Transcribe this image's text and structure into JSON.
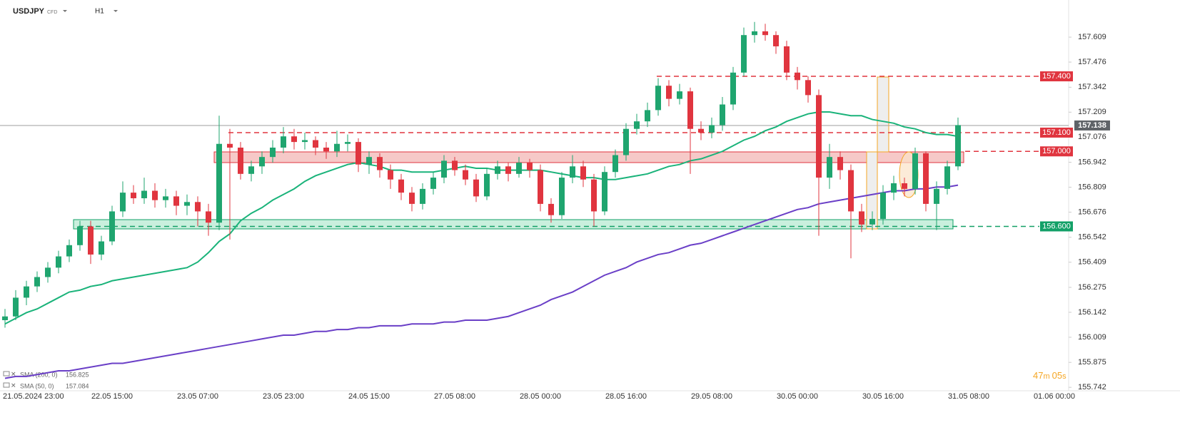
{
  "header": {
    "symbol": "USDJPY",
    "instrument": "CFD",
    "interval": "H1"
  },
  "timer": {
    "minutes": "47",
    "minutes_unit": "m",
    "seconds": "05",
    "seconds_unit": "s"
  },
  "chart_data": {
    "type": "candlestick",
    "up_color": "#1fa56f",
    "down_color": "#e0353f",
    "grid": false,
    "ylim": [
      155.735,
      157.807
    ],
    "yticks": [
      157.609,
      157.476,
      157.342,
      157.209,
      157.076,
      156.942,
      156.809,
      156.676,
      156.542,
      156.409,
      156.275,
      156.142,
      156.009,
      155.875,
      155.742
    ],
    "categories": [
      null,
      null,
      "21.05.2024 23:00",
      null,
      null,
      null,
      null,
      null,
      null,
      null,
      "22.05 15:00",
      null,
      null,
      null,
      null,
      null,
      null,
      null,
      "23.05 07:00",
      null,
      null,
      null,
      null,
      null,
      null,
      null,
      "23.05 23:00",
      null,
      null,
      null,
      null,
      null,
      null,
      null,
      "24.05 15:00",
      null,
      null,
      null,
      null,
      null,
      null,
      null,
      "27.05 08:00",
      null,
      null,
      null,
      null,
      null,
      null,
      null,
      "28.05 00:00",
      null,
      null,
      null,
      null,
      null,
      null,
      null,
      "28.05 16:00",
      null,
      null,
      null,
      null,
      null,
      null,
      null,
      "29.05 08:00",
      null,
      null,
      null,
      null,
      null,
      null,
      null,
      "30.05 00:00",
      null,
      null,
      null,
      null,
      null,
      null,
      null,
      "30.05 16:00",
      null,
      null,
      null,
      null,
      null,
      null,
      null,
      "31.05 08:00",
      null,
      null,
      null,
      null,
      null,
      null,
      null,
      "01.06 00:00"
    ],
    "open": [
      156.1,
      156.12,
      156.22,
      156.28,
      156.33,
      156.38,
      156.44,
      156.5,
      156.6,
      156.45,
      156.52,
      156.68,
      156.78,
      156.75,
      156.79,
      156.74,
      156.76,
      156.71,
      156.73,
      156.68,
      156.62,
      157.04,
      157.02,
      156.88,
      156.92,
      156.97,
      157.02,
      157.08,
      157.05,
      157.06,
      157.02,
      157.0,
      157.04,
      157.05,
      156.93,
      156.97,
      156.9,
      156.85,
      156.78,
      156.72,
      156.8,
      156.86,
      156.95,
      156.9,
      156.85,
      156.76,
      156.88,
      156.92,
      156.88,
      156.94,
      156.9,
      156.72,
      156.66,
      156.86,
      156.92,
      156.85,
      156.68,
      156.89,
      156.98,
      157.12,
      157.16,
      157.22,
      157.35,
      157.28,
      157.32,
      157.12,
      157.1,
      157.14,
      157.25,
      157.42,
      157.62,
      157.64,
      157.62,
      157.56,
      157.42,
      157.38,
      157.3,
      156.86,
      156.97,
      156.9,
      156.68,
      156.61,
      156.64,
      156.78,
      156.83,
      156.8,
      156.99,
      156.72,
      156.8,
      156.92,
      null,
      null,
      null,
      null,
      null,
      null,
      null,
      null,
      null
    ],
    "high": [
      156.16,
      156.26,
      156.31,
      156.36,
      156.41,
      156.47,
      156.53,
      156.63,
      156.63,
      156.55,
      156.71,
      156.84,
      156.82,
      156.86,
      156.83,
      156.8,
      156.79,
      156.77,
      156.76,
      156.72,
      157.19,
      157.12,
      157.05,
      156.95,
      157.0,
      157.06,
      157.13,
      157.12,
      157.1,
      157.08,
      157.05,
      157.11,
      157.09,
      157.07,
      157.0,
      156.99,
      156.93,
      156.88,
      156.81,
      156.83,
      156.89,
      156.98,
      156.97,
      156.93,
      156.88,
      156.91,
      156.95,
      156.94,
      156.97,
      156.96,
      156.93,
      156.75,
      156.89,
      156.98,
      156.95,
      156.88,
      156.92,
      157.01,
      157.15,
      157.2,
      157.26,
      157.39,
      157.38,
      157.36,
      157.34,
      157.16,
      157.18,
      157.29,
      157.45,
      157.66,
      157.69,
      157.68,
      157.64,
      157.59,
      157.45,
      157.4,
      157.33,
      157.04,
      157.0,
      156.93,
      156.72,
      156.68,
      156.82,
      156.87,
      156.86,
      157.02,
      157.0,
      156.84,
      156.95,
      157.18,
      null,
      null,
      null,
      null,
      null,
      null,
      null,
      null,
      null
    ],
    "low": [
      156.06,
      156.1,
      156.18,
      156.25,
      156.3,
      156.35,
      156.41,
      156.47,
      156.4,
      156.42,
      156.5,
      156.65,
      156.72,
      156.72,
      156.7,
      156.7,
      156.66,
      156.66,
      156.6,
      156.55,
      156.58,
      156.53,
      156.85,
      156.84,
      156.88,
      156.94,
      156.99,
      157.01,
      157.01,
      156.98,
      156.96,
      156.97,
      157.0,
      156.89,
      156.88,
      156.86,
      156.8,
      156.74,
      156.68,
      156.69,
      156.77,
      156.83,
      156.87,
      156.82,
      156.73,
      156.74,
      156.85,
      156.84,
      156.86,
      156.86,
      156.68,
      156.62,
      156.64,
      156.83,
      156.81,
      156.6,
      156.66,
      156.86,
      156.95,
      157.09,
      157.13,
      157.19,
      157.24,
      157.25,
      156.88,
      157.06,
      157.07,
      157.11,
      157.22,
      157.4,
      157.58,
      157.59,
      157.52,
      157.38,
      157.33,
      157.26,
      156.55,
      156.8,
      156.85,
      156.43,
      156.57,
      156.58,
      156.61,
      156.74,
      156.76,
      156.77,
      156.68,
      156.58,
      156.77,
      156.9,
      null,
      null,
      null,
      null,
      null,
      null,
      null,
      null,
      null
    ],
    "close": [
      156.12,
      156.22,
      156.28,
      156.33,
      156.38,
      156.44,
      156.5,
      156.6,
      156.45,
      156.52,
      156.68,
      156.78,
      156.75,
      156.79,
      156.74,
      156.76,
      156.71,
      156.73,
      156.68,
      156.62,
      157.04,
      157.02,
      156.88,
      156.92,
      156.97,
      157.02,
      157.08,
      157.05,
      157.06,
      157.02,
      157.0,
      157.04,
      157.05,
      156.93,
      156.97,
      156.9,
      156.85,
      156.78,
      156.72,
      156.8,
      156.86,
      156.95,
      156.9,
      156.85,
      156.76,
      156.88,
      156.92,
      156.88,
      156.94,
      156.9,
      156.72,
      156.66,
      156.86,
      156.92,
      156.85,
      156.68,
      156.89,
      156.98,
      157.12,
      157.16,
      157.22,
      157.35,
      157.28,
      157.32,
      157.12,
      157.1,
      157.14,
      157.25,
      157.42,
      157.62,
      157.64,
      157.62,
      157.56,
      157.42,
      157.38,
      157.3,
      156.86,
      156.97,
      156.9,
      156.68,
      156.61,
      156.64,
      156.78,
      156.83,
      156.8,
      156.99,
      156.72,
      156.8,
      156.92,
      157.14,
      null,
      null,
      null,
      null,
      null,
      null,
      null,
      null,
      null
    ],
    "series": [
      {
        "name": "SMA (200, 0)",
        "color": "#6a3fc7",
        "last_value": 156.825,
        "values": [
          155.79,
          155.8,
          155.8,
          155.81,
          155.82,
          155.83,
          155.83,
          155.84,
          155.85,
          155.86,
          155.87,
          155.87,
          155.88,
          155.89,
          155.9,
          155.91,
          155.92,
          155.93,
          155.94,
          155.95,
          155.96,
          155.97,
          155.98,
          155.99,
          156.0,
          156.01,
          156.02,
          156.02,
          156.03,
          156.04,
          156.04,
          156.05,
          156.05,
          156.06,
          156.06,
          156.07,
          156.07,
          156.07,
          156.08,
          156.08,
          156.08,
          156.09,
          156.09,
          156.1,
          156.1,
          156.1,
          156.11,
          156.12,
          156.14,
          156.16,
          156.18,
          156.21,
          156.23,
          156.25,
          156.28,
          156.31,
          156.34,
          156.36,
          156.38,
          156.41,
          156.43,
          156.45,
          156.46,
          156.48,
          156.5,
          156.51,
          156.53,
          156.55,
          156.57,
          156.59,
          156.61,
          156.63,
          156.65,
          156.67,
          156.69,
          156.7,
          156.72,
          156.73,
          156.74,
          156.75,
          156.76,
          156.77,
          156.78,
          156.79,
          156.79,
          156.8,
          156.8,
          156.81,
          156.81,
          156.82,
          null,
          null,
          null,
          null,
          null,
          null,
          null,
          null,
          null
        ]
      },
      {
        "name": "SMA (50, 0)",
        "color": "#1ab37a",
        "last_value": 157.084,
        "values": [
          156.08,
          156.11,
          156.14,
          156.16,
          156.19,
          156.22,
          156.25,
          156.26,
          156.28,
          156.29,
          156.31,
          156.32,
          156.33,
          156.34,
          156.35,
          156.36,
          156.37,
          156.38,
          156.41,
          156.46,
          156.52,
          156.56,
          156.63,
          156.67,
          156.7,
          156.74,
          156.77,
          156.8,
          156.84,
          156.87,
          156.89,
          156.91,
          156.93,
          156.94,
          156.93,
          156.92,
          156.9,
          156.9,
          156.89,
          156.89,
          156.89,
          156.9,
          156.91,
          156.92,
          156.91,
          156.91,
          156.9,
          156.9,
          156.9,
          156.9,
          156.9,
          156.89,
          156.88,
          156.87,
          156.86,
          156.86,
          156.85,
          156.85,
          156.86,
          156.87,
          156.88,
          156.9,
          156.92,
          156.93,
          156.95,
          156.96,
          156.98,
          157.0,
          157.03,
          157.06,
          157.08,
          157.11,
          157.13,
          157.16,
          157.18,
          157.2,
          157.21,
          157.21,
          157.2,
          157.19,
          157.19,
          157.17,
          157.16,
          157.15,
          157.13,
          157.12,
          157.1,
          157.09,
          157.09,
          157.08,
          null,
          null,
          null,
          null,
          null,
          null,
          null,
          null,
          null
        ]
      }
    ],
    "levels": [
      {
        "value": 157.4,
        "label": "157.400",
        "color": "#e0353f"
      },
      {
        "value": 157.1,
        "label": "157.100",
        "color": "#e0353f"
      },
      {
        "value": 157.0,
        "label": "157.000",
        "color": "#e0353f"
      },
      {
        "value": 156.6,
        "label": "156.600",
        "color": "#12a067"
      }
    ],
    "current_price": {
      "value": 157.138,
      "label": "157.138",
      "color": "#5f6368"
    }
  }
}
